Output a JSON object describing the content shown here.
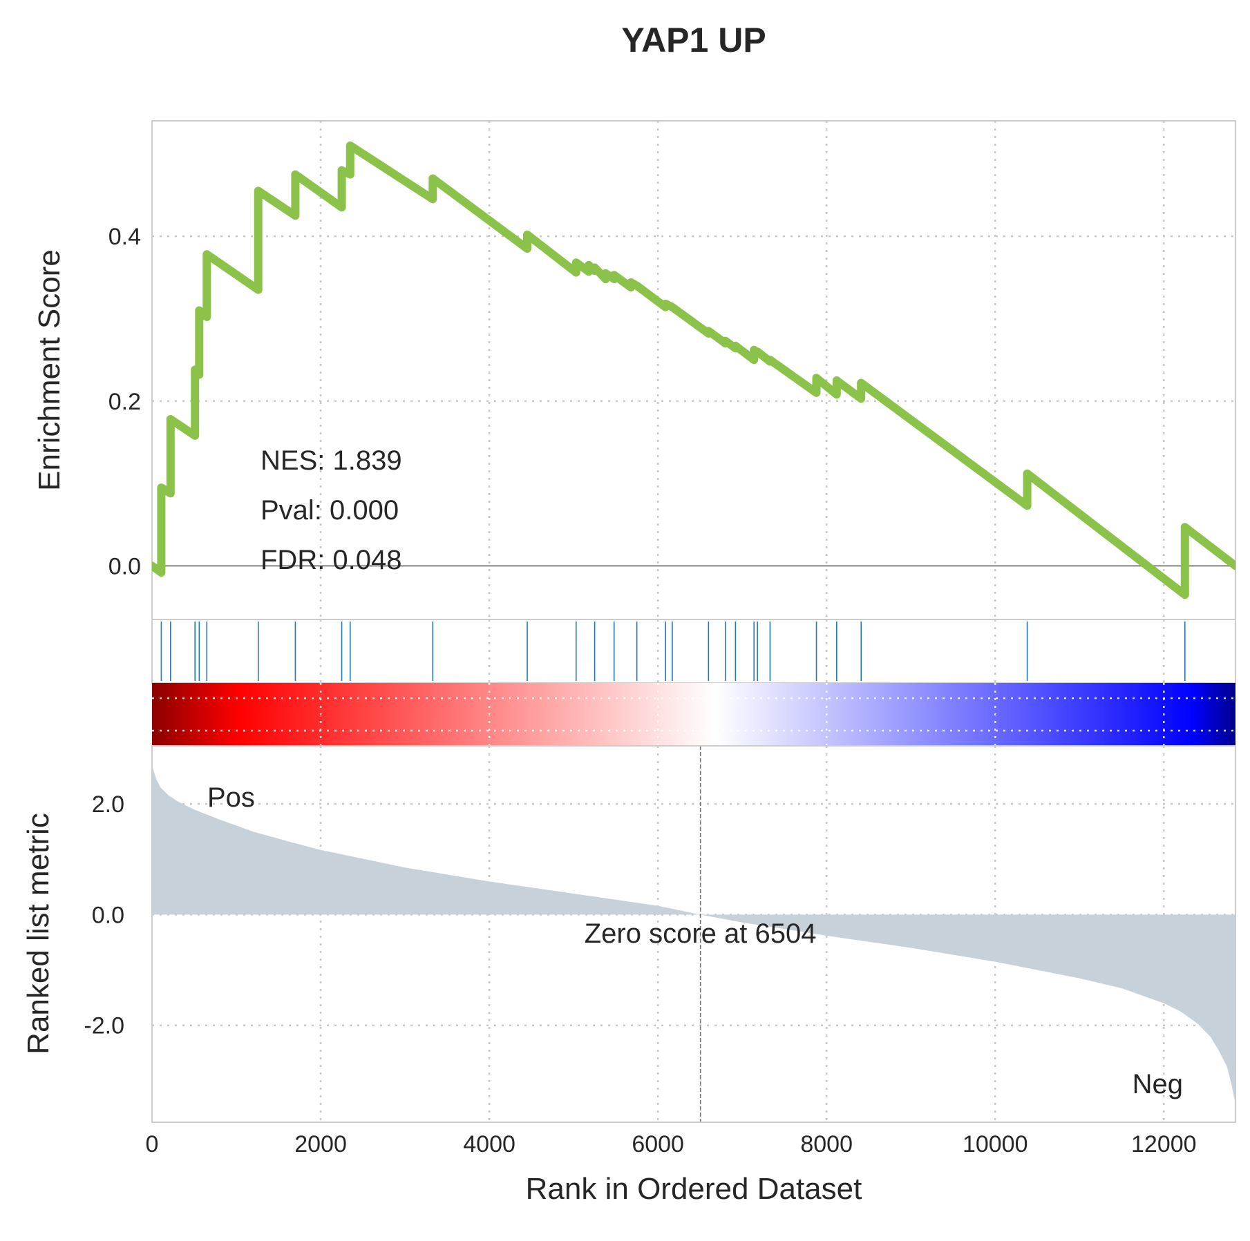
{
  "chart_data": {
    "type": "line",
    "title": "YAP1 UP",
    "xlabel": "Rank in Ordered Dataset",
    "xlim": [
      0,
      12850
    ],
    "xticks": [
      0,
      2000,
      4000,
      6000,
      8000,
      10000,
      12000
    ],
    "enrichment_panel": {
      "ylabel": "Enrichment Score",
      "ylim": [
        -0.065,
        0.54
      ],
      "yticks": [
        0.0,
        0.2,
        0.4
      ],
      "ytick_labels": [
        "0.0",
        "0.2",
        "0.4"
      ],
      "line_color": "#8bc34a",
      "series": [
        {
          "x": [
            0,
            110,
            110,
            220,
            220,
            510,
            510,
            560,
            560,
            650,
            650,
            1260,
            1260,
            1700,
            1700,
            2250,
            2250,
            2350,
            2350,
            3330,
            3330,
            4450,
            4450,
            5030,
            5030,
            5180,
            5180,
            5250,
            5250,
            5380,
            5380,
            5480,
            5480,
            5680,
            5680,
            5750,
            5750,
            6090,
            6090,
            6170,
            6170,
            6600,
            6600,
            6800,
            6800,
            6920,
            6920,
            7140,
            7140,
            7180,
            7180,
            7330,
            7330,
            7880,
            7880,
            8120,
            8120,
            8410,
            8410,
            10380,
            10380,
            12250,
            12250,
            12850
          ],
          "y": [
            0.0,
            -0.008,
            0.095,
            0.088,
            0.178,
            0.158,
            0.238,
            0.232,
            0.31,
            0.302,
            0.378,
            0.335,
            0.455,
            0.425,
            0.475,
            0.435,
            0.48,
            0.475,
            0.51,
            0.445,
            0.47,
            0.385,
            0.402,
            0.356,
            0.368,
            0.357,
            0.365,
            0.358,
            0.362,
            0.348,
            0.355,
            0.348,
            0.353,
            0.338,
            0.344,
            0.34,
            0.34,
            0.314,
            0.318,
            0.314,
            0.314,
            0.282,
            0.285,
            0.27,
            0.273,
            0.264,
            0.267,
            0.25,
            0.262,
            0.258,
            0.26,
            0.248,
            0.25,
            0.21,
            0.228,
            0.208,
            0.225,
            0.203,
            0.222,
            0.073,
            0.112,
            -0.035,
            0.047,
            0.0
          ]
        }
      ],
      "annotations": [
        "NES: 1.839",
        "Pval: 0.000",
        "FDR: 0.048"
      ]
    },
    "hits_panel": {
      "positions": [
        110,
        220,
        510,
        560,
        650,
        1260,
        1700,
        2250,
        2350,
        3330,
        4450,
        5030,
        5250,
        5480,
        5750,
        6090,
        6170,
        6600,
        6800,
        6920,
        7140,
        7180,
        7330,
        7880,
        8120,
        8410,
        10380,
        12250
      ],
      "line_color": "#1f77b4"
    },
    "colorbar": {
      "stops": [
        "#8b0000",
        "#ff0000",
        "#ffffff",
        "#0000ff",
        "#00008b"
      ],
      "stop_positions": [
        0,
        0.08,
        0.52,
        0.96,
        1
      ]
    },
    "ranked_panel": {
      "ylabel": "Ranked list metric",
      "ylim": [
        -3.75,
        3.05
      ],
      "yticks": [
        -2.0,
        0.0,
        2.0
      ],
      "ytick_labels": [
        "-2.0",
        "0.0",
        "2.0"
      ],
      "fill_color": "#c7d1da",
      "x": [
        0,
        20,
        50,
        100,
        200,
        300,
        500,
        800,
        1200,
        1600,
        2000,
        3000,
        4000,
        5000,
        6000,
        6504,
        7000,
        8000,
        9000,
        10000,
        11000,
        11500,
        12000,
        12200,
        12400,
        12550,
        12650,
        12750,
        12800,
        12840,
        12850
      ],
      "values": [
        2.7,
        2.6,
        2.45,
        2.3,
        2.15,
        2.05,
        1.9,
        1.72,
        1.5,
        1.33,
        1.17,
        0.85,
        0.6,
        0.38,
        0.16,
        0.0,
        -0.14,
        -0.38,
        -0.6,
        -0.85,
        -1.15,
        -1.33,
        -1.6,
        -1.75,
        -1.97,
        -2.2,
        -2.45,
        -2.75,
        -3.05,
        -3.35,
        -3.42
      ],
      "zero_score_label": "Zero score at 6504",
      "zero_score_x": 6504,
      "pos_label": "Pos",
      "neg_label": "Neg",
      "pos_color": "#ff0000",
      "neg_color": "#0000ff"
    }
  }
}
